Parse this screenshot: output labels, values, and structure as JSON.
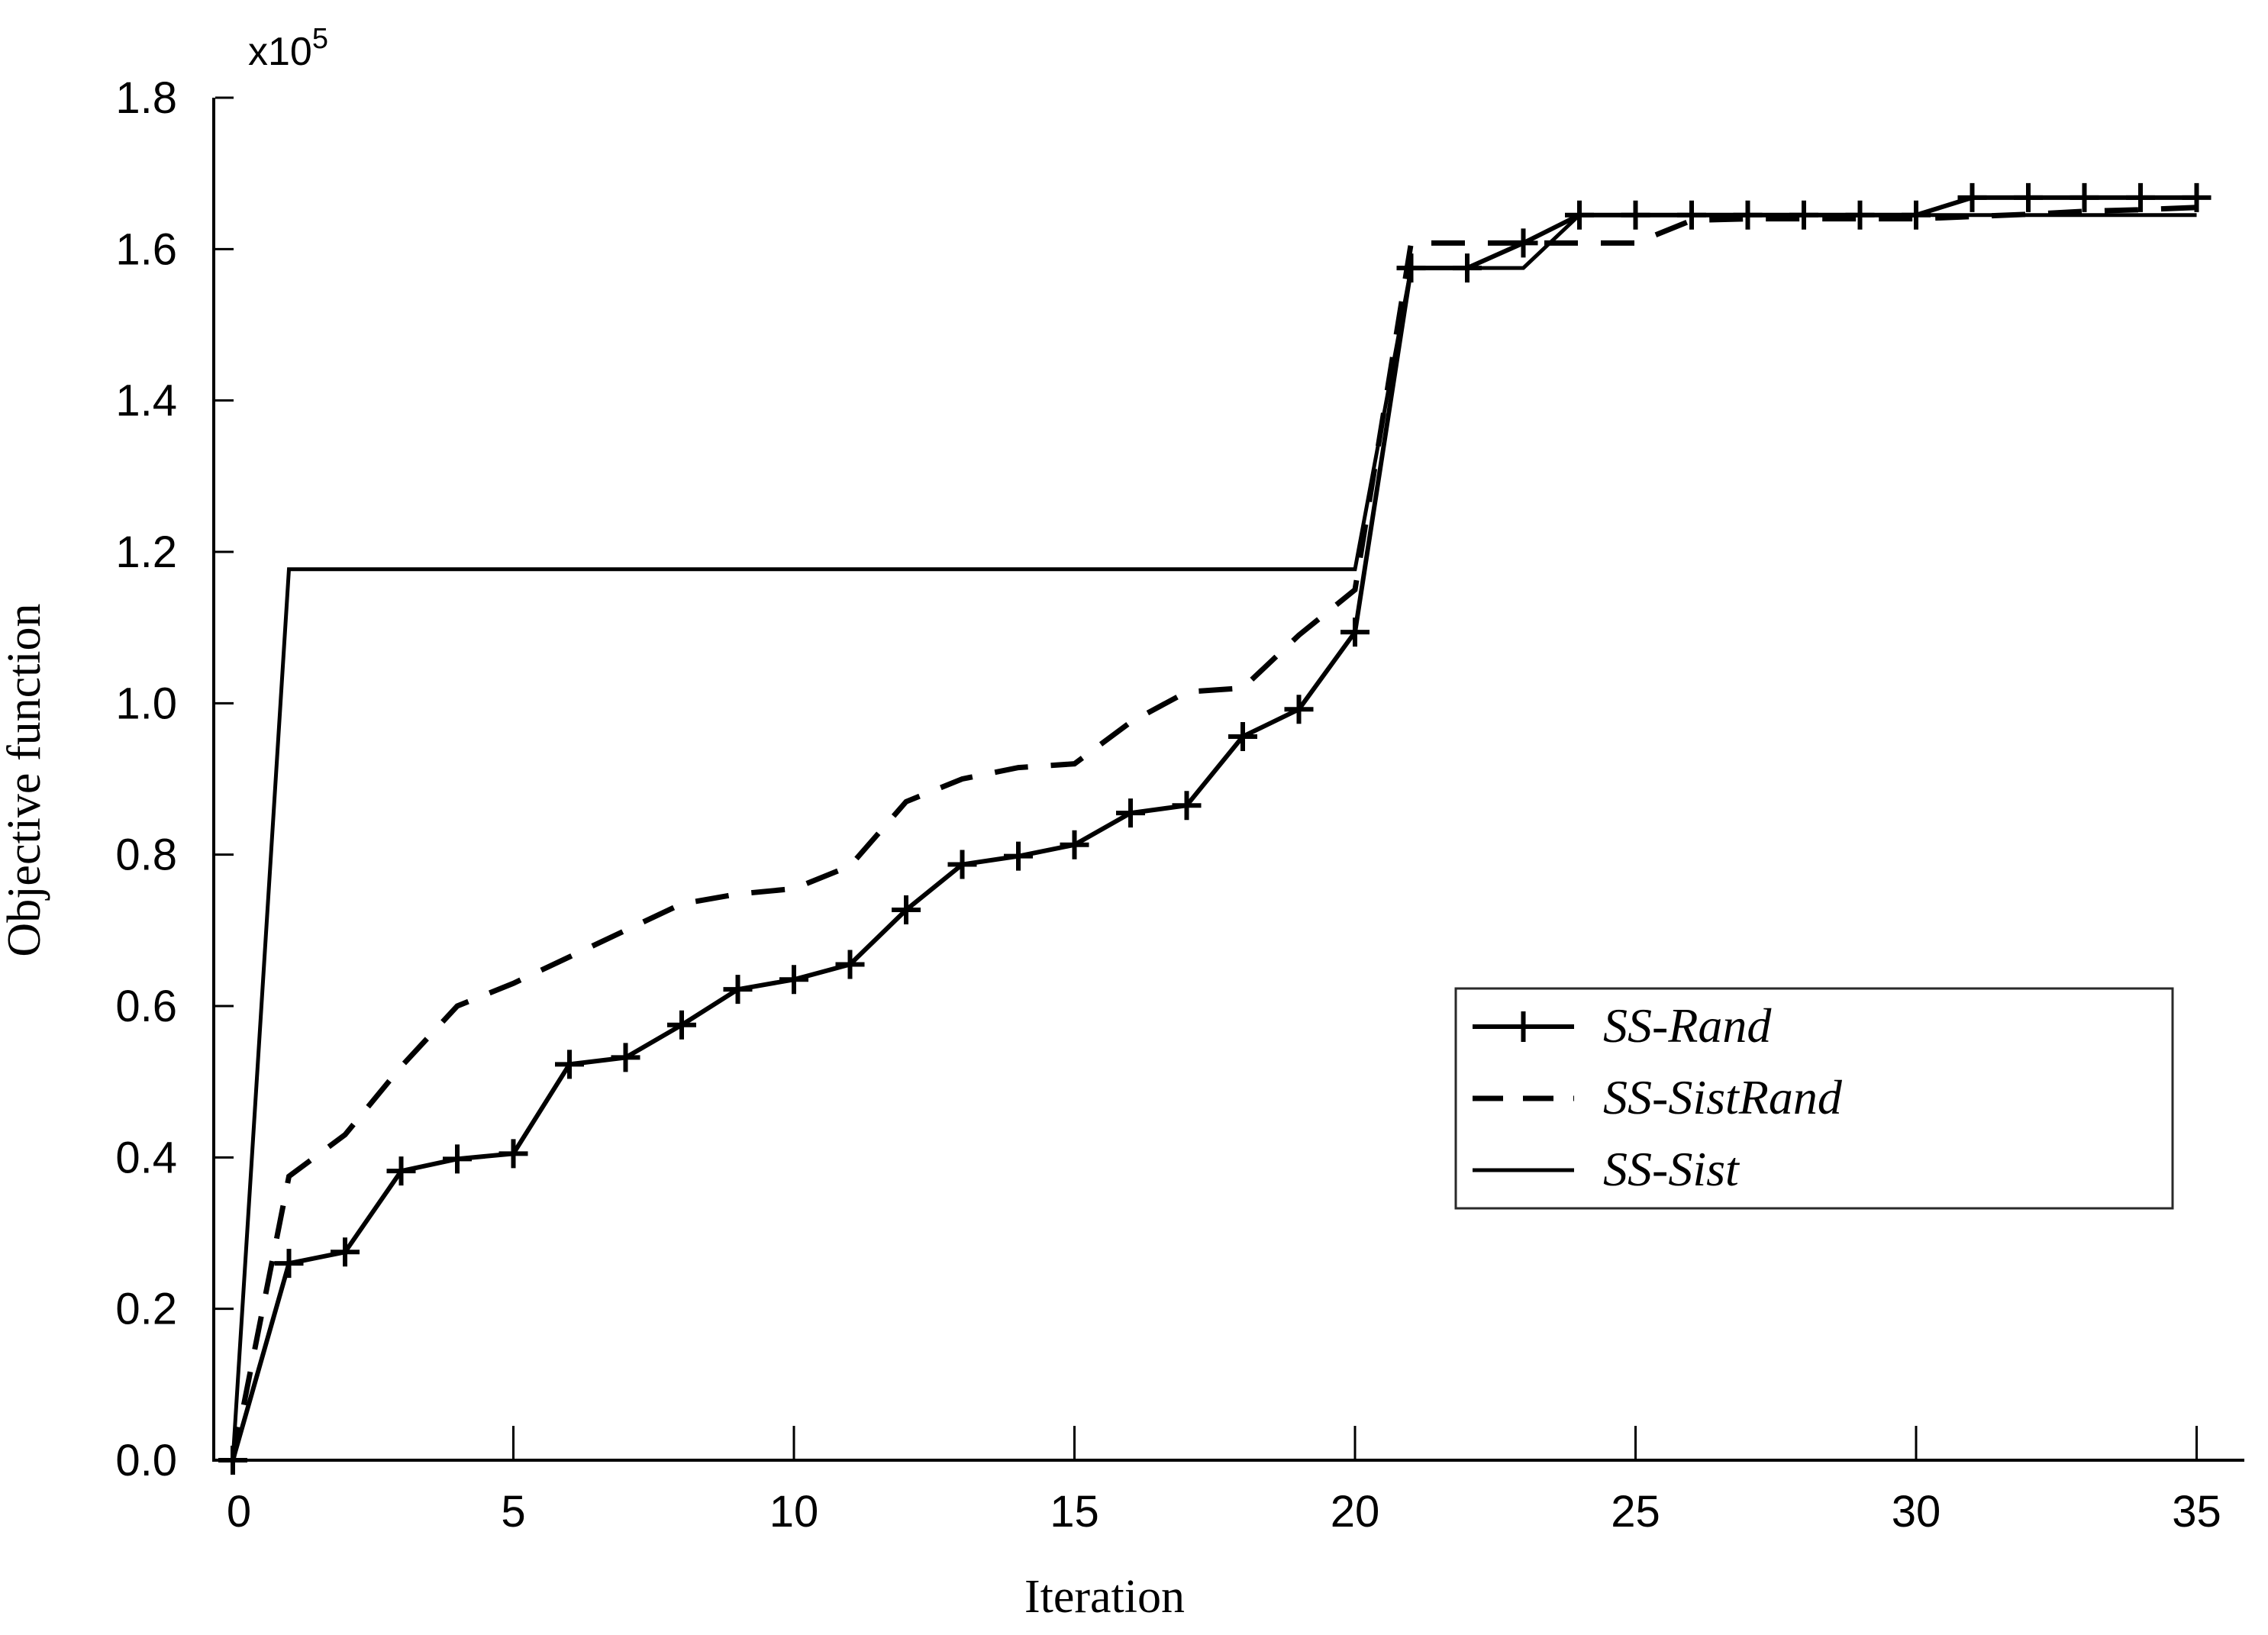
{
  "figure": {
    "background": "#ffffff",
    "axis_color": "#000000",
    "line_color": "#000000",
    "y_axis": {
      "label": "Objective function",
      "scale_label": "x10",
      "scale_exponent": "5",
      "tick_labels": [
        "0.0",
        "0.2",
        "0.4",
        "0.6",
        "0.8",
        "1.0",
        "1.2",
        "1.4",
        "1.6",
        "1.8"
      ]
    },
    "x_axis": {
      "label": "Iteration",
      "tick_labels": [
        "0",
        "5",
        "10",
        "15",
        "20",
        "25",
        "30",
        "35"
      ]
    },
    "legend": {
      "entries": [
        {
          "label": "SS-Rand",
          "line": "solid",
          "marker": "plus"
        },
        {
          "label": "SS-SistRand",
          "line": "dashed",
          "marker": "none"
        },
        {
          "label": "SS-Sist",
          "line": "solid",
          "marker": "none"
        }
      ]
    }
  },
  "chart_data": {
    "type": "line",
    "title": "",
    "xlabel": "Iteration",
    "ylabel": "Objective function",
    "y_unit_multiplier": "1e5",
    "xlim": [
      0,
      35
    ],
    "ylim": [
      0.0,
      1.8
    ],
    "x_ticks": [
      0,
      5,
      10,
      15,
      20,
      25,
      30,
      35
    ],
    "y_ticks": [
      0.0,
      0.2,
      0.4,
      0.6,
      0.8,
      1.0,
      1.2,
      1.4,
      1.6,
      1.8
    ],
    "grid": false,
    "legend_position": "right-middle",
    "series": [
      {
        "name": "SS-Sist",
        "line": "solid",
        "marker": "none",
        "x": [
          0,
          1,
          2,
          3,
          4,
          5,
          6,
          7,
          8,
          9,
          10,
          11,
          12,
          13,
          14,
          15,
          16,
          17,
          18,
          19,
          20,
          21,
          22,
          23,
          24,
          25,
          26,
          27,
          28,
          29,
          30,
          31,
          32,
          33,
          34,
          35
        ],
        "y": [
          0,
          1.177,
          1.177,
          1.177,
          1.177,
          1.177,
          1.177,
          1.177,
          1.177,
          1.177,
          1.177,
          1.177,
          1.177,
          1.177,
          1.177,
          1.177,
          1.177,
          1.177,
          1.177,
          1.177,
          1.177,
          1.575,
          1.575,
          1.575,
          1.645,
          1.645,
          1.645,
          1.645,
          1.645,
          1.645,
          1.645,
          1.645,
          1.645,
          1.645,
          1.645,
          1.645
        ]
      },
      {
        "name": "SS-SistRand",
        "line": "dashed",
        "marker": "none",
        "x": [
          0,
          1,
          2,
          3,
          4,
          5,
          6,
          7,
          8,
          9,
          10,
          11,
          12,
          13,
          14,
          15,
          16,
          17,
          18,
          19,
          20,
          21,
          22,
          23,
          24,
          25,
          26,
          27,
          28,
          29,
          30,
          31,
          32,
          33,
          34,
          35
        ],
        "y": [
          0,
          0.375,
          0.43,
          0.52,
          0.6,
          0.63,
          0.665,
          0.7,
          0.735,
          0.748,
          0.755,
          0.785,
          0.87,
          0.9,
          0.915,
          0.92,
          0.975,
          1.015,
          1.02,
          1.09,
          1.15,
          1.608,
          1.608,
          1.608,
          1.608,
          1.608,
          1.638,
          1.64,
          1.64,
          1.64,
          1.64,
          1.643,
          1.646,
          1.65,
          1.652,
          1.655
        ]
      },
      {
        "name": "SS-Rand",
        "line": "solid",
        "marker": "plus",
        "x": [
          0,
          1,
          2,
          3,
          4,
          5,
          6,
          7,
          8,
          9,
          10,
          11,
          12,
          13,
          14,
          15,
          16,
          17,
          18,
          19,
          20,
          21,
          22,
          23,
          24,
          25,
          26,
          27,
          28,
          29,
          30,
          31,
          32,
          33,
          34,
          35
        ],
        "y": [
          0,
          0.26,
          0.275,
          0.382,
          0.398,
          0.405,
          0.523,
          0.532,
          0.575,
          0.622,
          0.635,
          0.655,
          0.727,
          0.787,
          0.798,
          0.813,
          0.855,
          0.865,
          0.956,
          0.992,
          1.094,
          1.575,
          1.575,
          1.608,
          1.645,
          1.645,
          1.645,
          1.645,
          1.645,
          1.645,
          1.645,
          1.668,
          1.668,
          1.668,
          1.668,
          1.668
        ]
      }
    ]
  }
}
